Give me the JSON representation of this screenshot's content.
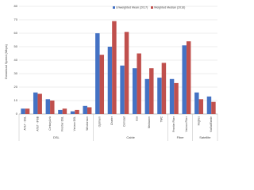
{
  "chart_data": {
    "type": "bar",
    "y_label": "Download Speed (Mbps)",
    "groups": [
      {
        "name": "DSL",
        "categories": [
          "AT&T - DSL",
          "AT&T - IPBB",
          "CenturyLink",
          "Frontier DSL",
          "Verizon DSL",
          "Windstream"
        ]
      },
      {
        "name": "Cable",
        "categories": [
          "Optimum",
          "Charter",
          "Comcast",
          "Cox",
          "Mediacom",
          "TWC"
        ]
      },
      {
        "name": "Fiber",
        "categories": [
          "Frontier Fiber",
          "Verizon Fiber"
        ]
      },
      {
        "name": "Satellite",
        "categories": [
          "Hughes",
          "ViaSat/Exede"
        ]
      }
    ],
    "series": [
      {
        "name": "Unweighted Mean (2017)",
        "color": "#4472c4",
        "values": [
          4,
          16,
          11,
          3,
          2,
          6,
          60,
          50,
          36,
          34,
          26,
          27,
          26,
          51,
          16,
          13
        ]
      },
      {
        "name": "Weighted Median (2016)",
        "color": "#c0504d",
        "values": [
          4,
          15,
          10,
          4,
          3,
          5,
          44,
          69,
          61,
          45,
          34,
          38,
          23,
          54,
          11,
          9
        ]
      }
    ],
    "ylim": [
      0,
      80
    ],
    "yticks": [
      0,
      10,
      20,
      30,
      40,
      50,
      60,
      70,
      80
    ],
    "grid": true,
    "legend": "top"
  }
}
